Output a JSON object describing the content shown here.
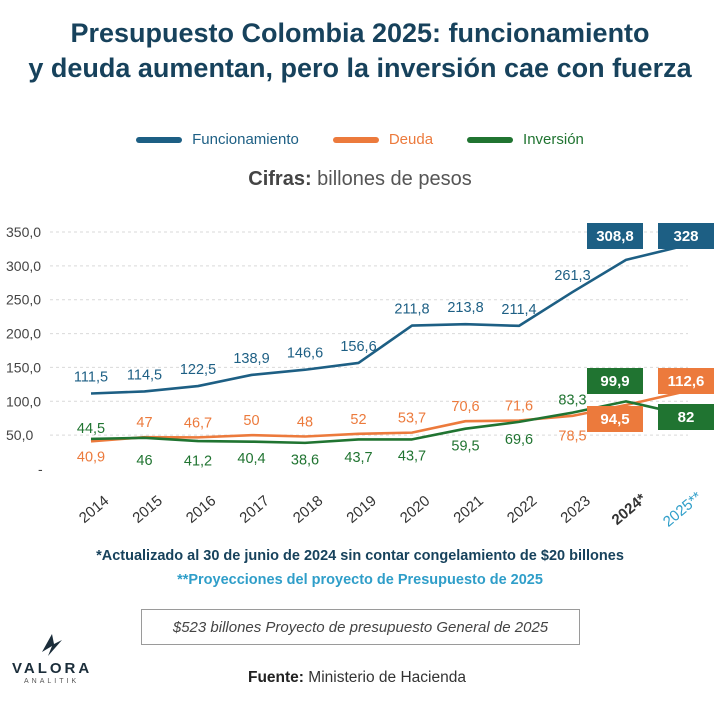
{
  "title_line1": "Presupuesto Colombia 2025: funcionamiento",
  "title_line2": "y deuda aumentan, pero la inversión cae con fuerza",
  "units_label": "Cifras:",
  "units_text": "billones de pesos",
  "colors": {
    "funcionamiento": "#1d5f84",
    "deuda": "#ec7a3c",
    "inversion": "#207431",
    "title": "#17425c",
    "projection": "#2f9ec9"
  },
  "chart_data": {
    "type": "line",
    "categories": [
      "2014",
      "2015",
      "2016",
      "2017",
      "2018",
      "2019",
      "2020",
      "2021",
      "2022",
      "2023",
      "2024*",
      "2025**"
    ],
    "yticks": [
      "350,0",
      "300,0",
      "250,0",
      "200,0",
      "150,0",
      "100,0",
      "50,0",
      "-"
    ],
    "ylim": [
      0,
      350
    ],
    "series": [
      {
        "name": "Funcionamiento",
        "values": [
          111.5,
          114.5,
          122.5,
          138.9,
          146.6,
          156.6,
          211.8,
          213.8,
          211.4,
          261.3,
          308.8,
          328
        ],
        "labels": [
          "111,5",
          "114,5",
          "122,5",
          "138,9",
          "146,6",
          "156,6",
          "211,8",
          "213,8",
          "211,4",
          "261,3",
          "308,8",
          "328"
        ]
      },
      {
        "name": "Deuda",
        "values": [
          40.9,
          47,
          46.7,
          50,
          48,
          52,
          53.7,
          70.6,
          71.6,
          78.5,
          94.5,
          112.6
        ],
        "labels": [
          "40,9",
          "47",
          "46,7",
          "50",
          "48",
          "52",
          "53,7",
          "70,6",
          "71,6",
          "78,5",
          "94,5",
          "112,6"
        ]
      },
      {
        "name": "Inversión",
        "values": [
          44.5,
          46,
          41.2,
          40.4,
          38.6,
          43.7,
          43.7,
          59.5,
          69.6,
          83.3,
          99.9,
          82
        ],
        "labels": [
          "44,5",
          "46",
          "41,2",
          "40,4",
          "38,6",
          "43,7",
          "43,7",
          "59,5",
          "69,6",
          "83,3",
          "99,9",
          "82"
        ]
      }
    ]
  },
  "note_updated": "*Actualizado al 30 de junio de 2024 sin contar congelamiento de $20 billones",
  "note_projection": "**Proyecciones del proyecto de Presupuesto de 2025",
  "box_note": "$523 billones Proyecto de presupuesto General de 2025",
  "source_label": "Fuente:",
  "source_text": "Ministerio de Hacienda",
  "logo": {
    "name": "VALORA",
    "sub": "ANALITIK"
  }
}
